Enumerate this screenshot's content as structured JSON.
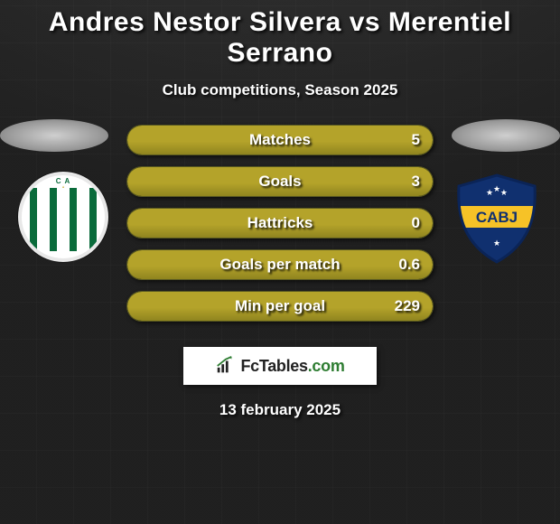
{
  "title": "Andres Nestor Silvera vs Merentiel Serrano",
  "subtitle": "Club competitions, Season 2025",
  "date": "13 february 2025",
  "brand": {
    "name": "FcTables",
    "suffix": ".com"
  },
  "colors": {
    "pill_bg": "#3a3a18",
    "pill_fill": "#b4a32a",
    "pill_fill_dark": "#8f841f",
    "text": "#ffffff"
  },
  "left_club": {
    "name": "Banfield",
    "stripe_colors": [
      "#0a6b3b",
      "#ffffff",
      "#0a6b3b",
      "#ffffff",
      "#0a6b3b",
      "#ffffff",
      "#0a6b3b"
    ],
    "border_color": "#e8e8e8",
    "ca_text": "C A",
    "ca_color": "#0a6b3b",
    "star_color": "#c7a92a"
  },
  "right_club": {
    "name": "Boca Juniors",
    "shield_fill": "#10306f",
    "band_fill": "#f6c227",
    "text": "CABJ",
    "text_color": "#10306f",
    "outline": "#0b2457",
    "stars_color": "#ffffff"
  },
  "rows": [
    {
      "label": "Matches",
      "left": "",
      "right": "5",
      "fill_pct": 100
    },
    {
      "label": "Goals",
      "left": "",
      "right": "3",
      "fill_pct": 100
    },
    {
      "label": "Hattricks",
      "left": "",
      "right": "0",
      "fill_pct": 100
    },
    {
      "label": "Goals per match",
      "left": "",
      "right": "0.6",
      "fill_pct": 100
    },
    {
      "label": "Min per goal",
      "left": "",
      "right": "229",
      "fill_pct": 100
    }
  ]
}
